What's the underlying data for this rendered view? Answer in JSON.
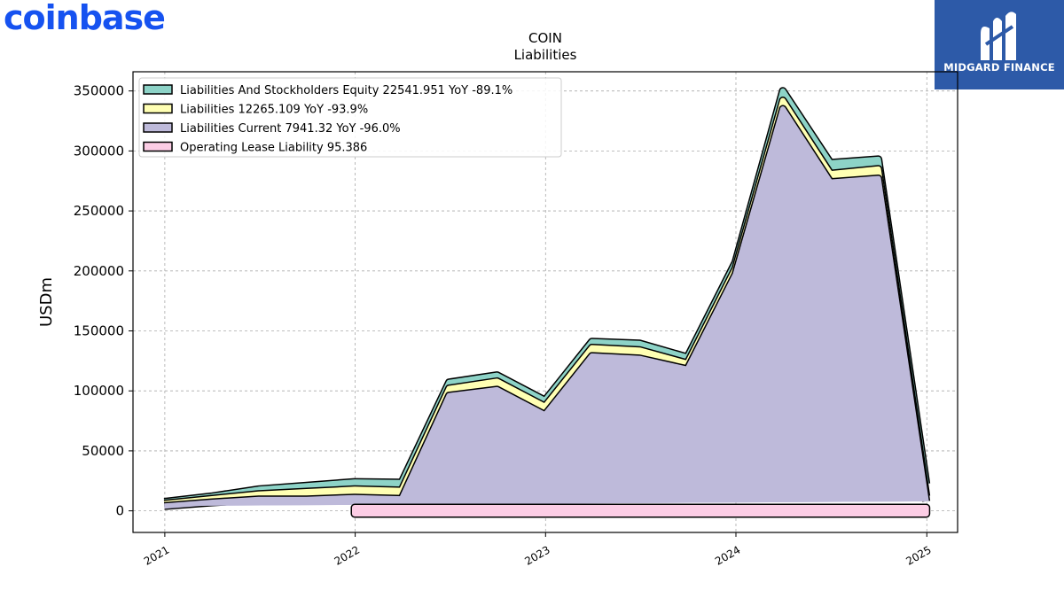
{
  "brand": {
    "logo_text": "coinbase",
    "color": "#1652f0"
  },
  "corner_logo": {
    "text": "MIDGARD FINANCE",
    "background": "#2d5aa8",
    "icon": "midgard-m-icon"
  },
  "chart_data": {
    "type": "area",
    "title": "COIN",
    "subtitle": "Liabilities",
    "xlabel": "",
    "ylabel": "USDm",
    "ylim": [
      -18000,
      366000
    ],
    "xlim": [
      "2020-11-01",
      "2025-03-01"
    ],
    "grid": true,
    "legend_position": "top-left",
    "x_ticks": [
      "2021",
      "2022",
      "2023",
      "2024",
      "2025"
    ],
    "y_ticks": [
      0,
      50000,
      100000,
      150000,
      200000,
      250000,
      300000,
      350000
    ],
    "y_tick_labels": [
      "0",
      "50000",
      "100000",
      "150000",
      "200000",
      "250000",
      "300000",
      "350000"
    ],
    "series": [
      {
        "name": "Liabilities And Stockholders Equity",
        "legend": "Liabilities And Stockholders Equity  22541.951 YoY -89.1%",
        "color": "#8dd3c7",
        "x": [
          "2020-12-31",
          "2021-03-31",
          "2021-06-30",
          "2021-09-30",
          "2021-12-31",
          "2022-03-31",
          "2022-06-30",
          "2022-09-30",
          "2022-12-31",
          "2023-03-31",
          "2023-06-30",
          "2023-09-30",
          "2023-12-31",
          "2024-03-31",
          "2024-06-30",
          "2024-09-30",
          "2024-12-31"
        ],
        "values": [
          7500,
          12000,
          18000,
          21000,
          24000,
          23500,
          107000,
          113000,
          92000,
          141000,
          139500,
          128000,
          207000,
          350000,
          290000,
          293000,
          22542
        ]
      },
      {
        "name": "Liabilities",
        "legend": "Liabilities  12265.109 YoY -93.9%",
        "color": "#ffffb3",
        "x": [
          "2020-12-31",
          "2021-03-31",
          "2021-06-30",
          "2021-09-30",
          "2021-12-31",
          "2022-03-31",
          "2022-06-30",
          "2022-09-30",
          "2022-12-31",
          "2023-03-31",
          "2023-06-30",
          "2023-09-30",
          "2023-12-31",
          "2024-03-31",
          "2024-06-30",
          "2024-09-30",
          "2024-12-31"
        ],
        "values": [
          6000,
          10000,
          14000,
          16000,
          18000,
          17000,
          102000,
          108000,
          87000,
          136000,
          134000,
          123000,
          202000,
          342000,
          281000,
          285000,
          12265
        ]
      },
      {
        "name": "Liabilities Current",
        "legend": "Liabilities Current  7941.32 YoY -96.0%",
        "color": "#bebada",
        "x": [
          "2020-12-31",
          "2021-03-31",
          "2021-06-30",
          "2021-09-30",
          "2021-12-31",
          "2022-03-31",
          "2022-06-30",
          "2022-09-30",
          "2022-12-31",
          "2023-03-31",
          "2023-06-30",
          "2023-09-30",
          "2023-12-31",
          "2024-03-31",
          "2024-06-30",
          "2024-09-30",
          "2024-12-31"
        ],
        "values": [
          4000,
          7000,
          9500,
          9500,
          11000,
          10000,
          96000,
          101000,
          80000,
          129000,
          127000,
          118000,
          197000,
          335000,
          274000,
          277000,
          7941
        ]
      },
      {
        "name": "Operating Lease Liability",
        "legend": "Operating Lease Liability  95.386",
        "color": "#fccde5",
        "x": [
          "2021-12-31",
          "2024-12-31"
        ],
        "values": [
          95,
          95
        ]
      }
    ]
  }
}
